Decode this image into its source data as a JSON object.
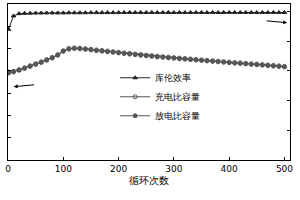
{
  "chart_data": {
    "type": "line",
    "x_label": "循环次数",
    "x": [
      1,
      10,
      20,
      30,
      40,
      50,
      60,
      70,
      80,
      90,
      100,
      110,
      120,
      130,
      140,
      150,
      160,
      170,
      180,
      190,
      200,
      210,
      220,
      230,
      240,
      250,
      260,
      270,
      280,
      290,
      300,
      310,
      320,
      330,
      340,
      350,
      360,
      370,
      380,
      390,
      400,
      410,
      420,
      430,
      440,
      450,
      460,
      470,
      480,
      490,
      500
    ],
    "series": [
      {
        "name": "库伦效率",
        "color": "#222222",
        "marker": "triangle",
        "axis": "y2",
        "values": [
          88,
          97,
          98.5,
          98.7,
          98.8,
          98.9,
          98.9,
          99,
          99,
          99,
          99,
          99.1,
          99.1,
          99.1,
          99.1,
          99.2,
          99.2,
          99.2,
          99.2,
          99.2,
          99.2,
          99.3,
          99.3,
          99.3,
          99.3,
          99.3,
          99.3,
          99.3,
          99.3,
          99.3,
          99.3,
          99.3,
          99.3,
          99.3,
          99.3,
          99.3,
          99.3,
          99.3,
          99.3,
          99.3,
          99.3,
          99.3,
          99.3,
          99.3,
          99.3,
          99.3,
          99.3,
          99.3,
          99.3,
          99.3,
          99.3
        ]
      },
      {
        "name": "充电比容量",
        "color": "#555555",
        "marker": "open-circle",
        "values": [
          790,
          797,
          811,
          828,
          846,
          864,
          881,
          901,
          921,
          946,
          981,
          1001,
          1006,
          1004,
          999,
          994,
          988,
          983,
          978,
          972,
          967,
          961,
          956,
          951,
          946,
          941,
          936,
          931,
          927,
          923,
          919,
          915,
          911,
          907,
          903,
          899,
          895,
          891,
          887,
          883,
          879,
          875,
          872,
          868,
          864,
          861,
          857,
          853,
          849,
          845,
          841
        ]
      },
      {
        "name": "放电比容量",
        "color": "#555555",
        "marker": "circle",
        "values": [
          780,
          790,
          805,
          822,
          840,
          858,
          875,
          895,
          915,
          940,
          975,
          995,
          1000,
          998,
          993,
          988,
          982,
          977,
          972,
          966,
          961,
          955,
          950,
          945,
          940,
          935,
          930,
          925,
          921,
          917,
          913,
          909,
          905,
          901,
          897,
          893,
          889,
          885,
          881,
          877,
          873,
          869,
          866,
          862,
          858,
          855,
          851,
          847,
          843,
          839,
          835
        ]
      }
    ],
    "xlim": [
      0,
      510
    ],
    "xticks": [
      0,
      100,
      200,
      300,
      400,
      500
    ],
    "ylim": [
      0,
      1400
    ],
    "yticks": [
      0,
      200,
      400,
      600,
      800,
      1000,
      1200,
      1400
    ],
    "y2lim": [
      0,
      105
    ],
    "y2ticks": [
      0,
      20,
      40,
      60,
      80,
      100
    ],
    "tick_labels": "x",
    "legend": "center",
    "grid": false
  }
}
